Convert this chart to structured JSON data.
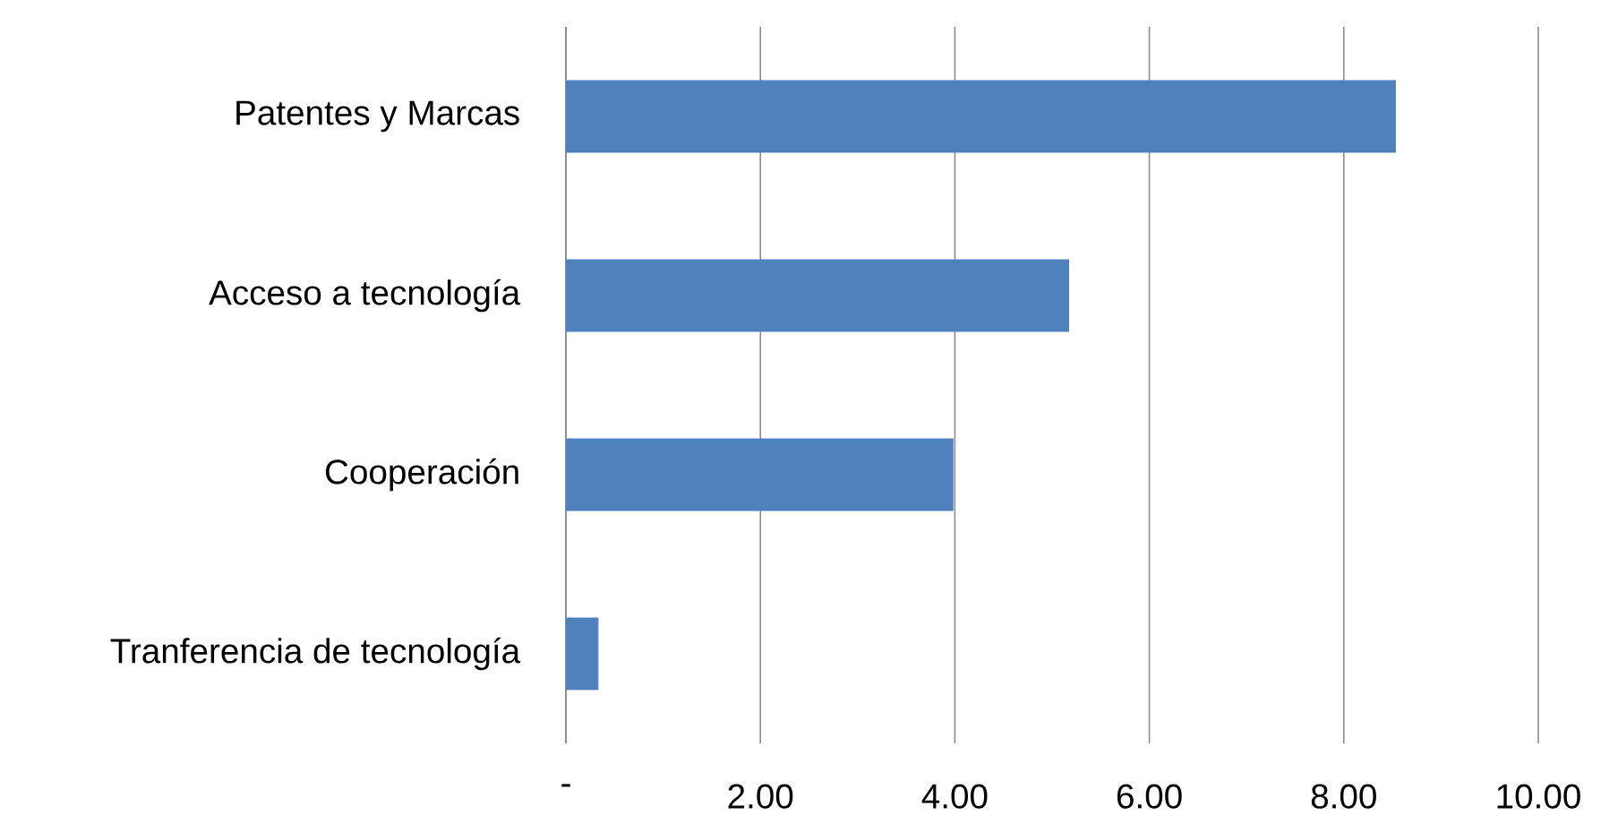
{
  "chart_data": {
    "type": "bar",
    "orientation": "horizontal",
    "categories": [
      "Patentes y Marcas",
      "Acceso a tecnología",
      "Cooperación",
      "Tranferencia de tecnología"
    ],
    "values": [
      8.53,
      5.17,
      3.98,
      0.33
    ],
    "color": "#4f81bd",
    "xlim": [
      0,
      10
    ],
    "xticks": [
      {
        "value": 0,
        "label": "-"
      },
      {
        "value": 2,
        "label": "2.00"
      },
      {
        "value": 4,
        "label": "4.00"
      },
      {
        "value": 6,
        "label": "6.00"
      },
      {
        "value": 8,
        "label": "8.00"
      },
      {
        "value": 10,
        "label": "10.00"
      }
    ],
    "grid": "x"
  }
}
